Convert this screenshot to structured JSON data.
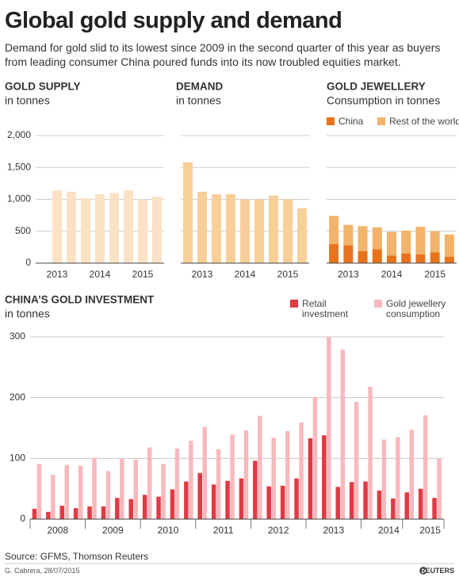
{
  "header": {
    "title": "Global gold supply and demand",
    "subtitle": "Demand for gold slid to its lowest since 2009 in the second quarter of this year as buyers from leading consumer China poured funds into its now troubled equities market."
  },
  "chart_data": [
    {
      "type": "bar",
      "title": "GOLD SUPPLY",
      "subtitle": "in tonnes",
      "categories": [
        null,
        "2013",
        null,
        null,
        "2014",
        null,
        null,
        "2015",
        null
      ],
      "values": [
        null,
        1140,
        1120,
        1020,
        1080,
        1100,
        1140,
        1000,
        1040
      ],
      "color": "#fbe2c5",
      "ylim": [
        0,
        2000
      ],
      "yticks": [
        0,
        500,
        {
          "value": 1000,
          "label": "1,000"
        },
        {
          "value": 1500,
          "label": "1,500"
        },
        {
          "value": 2000,
          "label": "2,000"
        }
      ],
      "grid": true
    },
    {
      "type": "bar",
      "title": "DEMAND",
      "subtitle": "in tonnes",
      "categories": [
        null,
        "2013",
        null,
        null,
        "2014",
        null,
        null,
        "2015",
        null
      ],
      "values": [
        1580,
        1120,
        1080,
        1080,
        1000,
        1000,
        1060,
        1000,
        860
      ],
      "color": "#f8cf98",
      "ylim": [
        0,
        2000
      ],
      "yticks": [
        0,
        500,
        1000,
        1500,
        2000
      ],
      "grid": true
    },
    {
      "type": "stacked_bar",
      "title": "GOLD JEWELLERY",
      "subtitle": "Consumption in tonnes",
      "categories": [
        null,
        "2013",
        null,
        null,
        "2014",
        null,
        null,
        "2015",
        null
      ],
      "series": [
        {
          "name": "China",
          "color": "#e8731c",
          "values": [
            300,
            280,
            190,
            220,
            120,
            150,
            140,
            170,
            100
          ]
        },
        {
          "name": "Rest of the world",
          "color": "#f2b36a",
          "values": [
            440,
            320,
            390,
            340,
            370,
            360,
            430,
            330,
            350
          ]
        }
      ],
      "ylim": [
        0,
        2000
      ],
      "yticks": [
        0,
        500,
        1000,
        1500,
        2000
      ],
      "grid": true
    },
    {
      "type": "grouped_bar",
      "title": "CHINA’S GOLD INVESTMENT",
      "subtitle": "in tonnes",
      "categories": [
        null,
        "2008",
        null,
        null,
        null,
        "2009",
        null,
        null,
        null,
        "2010",
        null,
        null,
        null,
        "2011",
        null,
        null,
        null,
        "2012",
        null,
        null,
        null,
        "2013",
        null,
        null,
        null,
        "2014",
        null,
        null,
        "2015",
        null
      ],
      "series": [
        {
          "name": "Retail investment",
          "color": "#e03a44",
          "values": [
            17,
            12,
            22,
            18,
            21,
            21,
            35,
            33,
            40,
            37,
            49,
            62,
            76,
            57,
            63,
            67,
            96,
            54,
            55,
            67,
            133,
            138,
            53,
            61,
            62,
            47,
            34,
            44,
            50,
            35
          ]
        },
        {
          "name": "Gold jewellery consumption",
          "color": "#f7b9bd",
          "values": [
            91,
            73,
            89,
            88,
            101,
            79,
            99,
            98,
            118,
            91,
            116,
            129,
            152,
            115,
            139,
            146,
            170,
            134,
            145,
            159,
            201,
            300,
            279,
            193,
            218,
            131,
            135,
            147,
            171,
            100
          ]
        }
      ],
      "ylim": [
        0,
        300
      ],
      "yticks": [
        0,
        100,
        200,
        300
      ],
      "grid": true
    }
  ],
  "footer": {
    "source": "Source: GFMS, Thomson Reuters",
    "credit": "G. Cabrera, 28/07/2015",
    "logo": "REUTERS"
  }
}
